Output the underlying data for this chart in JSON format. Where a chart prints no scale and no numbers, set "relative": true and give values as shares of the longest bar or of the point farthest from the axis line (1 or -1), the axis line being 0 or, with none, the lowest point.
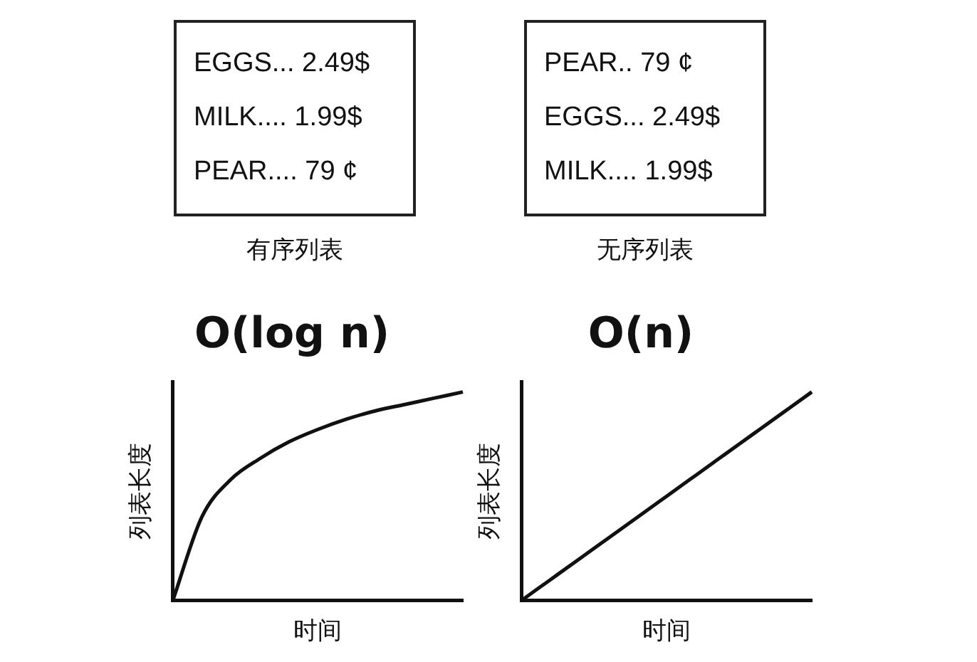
{
  "chart_data": [
    {
      "type": "other",
      "title": "有序列表",
      "annotations": [
        "EGGS... 2.49$",
        "MILK.... 1.99$",
        "PEAR.... 79 ¢"
      ]
    },
    {
      "type": "other",
      "title": "无序列表",
      "annotations": [
        "PEAR.. 79 ¢",
        "EGGS... 2.49$",
        "MILK.... 1.99$"
      ]
    },
    {
      "type": "line",
      "title": "O(log n)",
      "xlabel": "时间",
      "ylabel": "列表长度",
      "relative": true,
      "color": "#111111",
      "categories": [
        null,
        null,
        null,
        null,
        null,
        null,
        null,
        null,
        null,
        null,
        null
      ],
      "values": [
        0,
        0.4,
        0.58,
        0.68,
        0.76,
        0.82,
        0.87,
        0.91,
        0.94,
        0.97,
        1
      ]
    },
    {
      "type": "line",
      "title": "O(n)",
      "xlabel": "时间",
      "ylabel": "列表长度",
      "relative": true,
      "color": "#111111",
      "categories": [
        null,
        null,
        null,
        null,
        null,
        null,
        null,
        null,
        null,
        null,
        null
      ],
      "values": [
        0,
        0.1,
        0.2,
        0.3,
        0.4,
        0.5,
        0.6,
        0.7,
        0.8,
        0.9,
        1
      ]
    }
  ]
}
